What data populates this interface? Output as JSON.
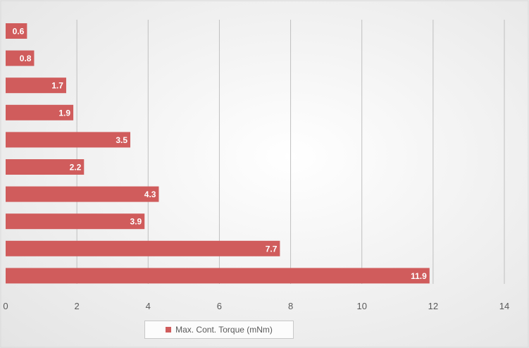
{
  "chart_data": {
    "type": "bar",
    "orientation": "horizontal",
    "title": "",
    "xlabel": "",
    "ylabel": "",
    "xlim": [
      0,
      14
    ],
    "x_ticks": [
      "0",
      "2",
      "4",
      "6",
      "8",
      "10",
      "12",
      "14"
    ],
    "grid": true,
    "legend_position": "bottom",
    "series": [
      {
        "name": "Max. Cont. Torque (mNm)",
        "color": "#d05c5c",
        "values": [
          0.6,
          0.8,
          1.7,
          1.9,
          3.5,
          2.2,
          4.3,
          3.9,
          7.7,
          11.9
        ],
        "labels": [
          "0.6",
          "0.8",
          "1.7",
          "1.9",
          "3.5",
          "2.2",
          "4.3",
          "3.9",
          "7.7",
          "11.9"
        ]
      }
    ]
  }
}
